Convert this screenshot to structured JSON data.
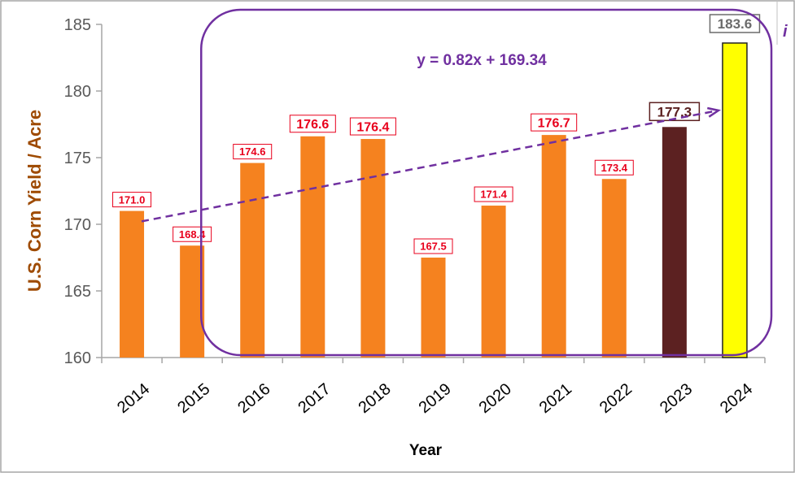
{
  "chart_data": {
    "type": "bar",
    "categories": [
      "2014",
      "2015",
      "2016",
      "2017",
      "2018",
      "2019",
      "2020",
      "2021",
      "2022",
      "2023",
      "2024"
    ],
    "values": [
      171.0,
      168.4,
      174.6,
      176.6,
      176.4,
      167.5,
      171.4,
      176.7,
      173.4,
      177.3,
      183.6
    ],
    "data_labels": [
      "171.0",
      "168.4",
      "174.6",
      "176.6",
      "176.4",
      "167.5",
      "171.4",
      "176.7",
      "173.4",
      "177.3",
      "183.6"
    ],
    "bar_colors": [
      "#f5821f",
      "#f5821f",
      "#f5821f",
      "#f5821f",
      "#f5821f",
      "#f5821f",
      "#f5821f",
      "#f5821f",
      "#f5821f",
      "#5c2121",
      "#ffff00"
    ],
    "label_colors": [
      "#e8001c",
      "#e8001c",
      "#e8001c",
      "#e8001c",
      "#e8001c",
      "#e8001c",
      "#e8001c",
      "#e8001c",
      "#e8001c",
      "#5c2121",
      "#6b6b6b"
    ],
    "title": "",
    "xlabel": "Year",
    "ylabel": "U.S. Corn Yield / Acre",
    "ylim": [
      160,
      185
    ],
    "yticks": [
      "160",
      "165",
      "170",
      "175",
      "180",
      "185"
    ],
    "grid": false,
    "trendline": {
      "equation": "y = 0.82x + 169.34",
      "slope": 0.82,
      "intercept": 169.34,
      "from_category": "2014",
      "to_category": "2024",
      "color": "#7030a0"
    },
    "highlight_box_color": "#7030a0",
    "corner_note": "i"
  },
  "colors": {
    "bar": "#f5821f",
    "bar_2023": "#5c2121",
    "bar_2024": "#ffff00",
    "axis_text": "#595959",
    "ylabel_color": "#9e4a00",
    "label_red": "#e8001c",
    "accent_purple": "#7030a0"
  }
}
